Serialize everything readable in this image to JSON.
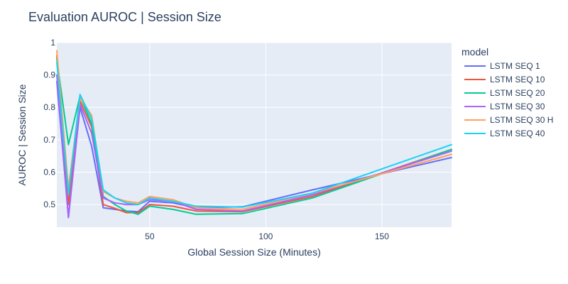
{
  "chart_data": {
    "type": "line",
    "title": "Evaluation AUROC | Session Size",
    "xlabel": "Global Session Size (Minutes)",
    "ylabel": "AUROC | Session Size",
    "xlim": [
      10,
      180
    ],
    "ylim": [
      0.43,
      1.0
    ],
    "xticks": [
      50,
      100,
      150
    ],
    "yticks": [
      0.5,
      0.6,
      0.7,
      0.8,
      0.9,
      1
    ],
    "ytick_labels": [
      "0.5",
      "0.6",
      "0.7",
      "0.8",
      "0.9",
      "1"
    ],
    "grid": true,
    "plot_background": "#e5ecf6",
    "legend_title": "model",
    "legend_position": "right",
    "x": [
      10,
      15,
      20,
      25,
      30,
      35,
      40,
      45,
      50,
      60,
      70,
      90,
      120,
      180
    ],
    "series": [
      {
        "name": "LSTM SEQ 1",
        "color": "#636efa",
        "values": [
          0.88,
          0.46,
          0.8,
          0.68,
          0.49,
          0.485,
          0.48,
          0.478,
          0.51,
          0.505,
          0.49,
          0.493,
          0.545,
          0.645
        ]
      },
      {
        "name": "LSTM SEQ 10",
        "color": "#ef553b",
        "values": [
          0.96,
          0.5,
          0.82,
          0.74,
          0.5,
          0.488,
          0.475,
          0.475,
          0.5,
          0.495,
          0.48,
          0.478,
          0.525,
          0.67
        ]
      },
      {
        "name": "LSTM SEQ 20",
        "color": "#00cc96",
        "values": [
          0.95,
          0.685,
          0.835,
          0.75,
          0.525,
          0.5,
          0.48,
          0.47,
          0.495,
          0.485,
          0.47,
          0.472,
          0.52,
          0.67
        ]
      },
      {
        "name": "LSTM SEQ 30",
        "color": "#ab63fa",
        "values": [
          0.9,
          0.46,
          0.81,
          0.72,
          0.52,
          0.505,
          0.5,
          0.5,
          0.515,
          0.51,
          0.485,
          0.48,
          0.53,
          0.665
        ]
      },
      {
        "name": "LSTM SEQ 30 H",
        "color": "#ffa15a",
        "values": [
          0.975,
          0.55,
          0.83,
          0.775,
          0.54,
          0.52,
          0.51,
          0.505,
          0.525,
          0.515,
          0.49,
          0.485,
          0.535,
          0.655
        ]
      },
      {
        "name": "LSTM SEQ 40",
        "color": "#19d3f3",
        "values": [
          0.94,
          0.53,
          0.84,
          0.765,
          0.545,
          0.52,
          0.505,
          0.5,
          0.52,
          0.51,
          0.495,
          0.492,
          0.535,
          0.685
        ]
      }
    ]
  }
}
